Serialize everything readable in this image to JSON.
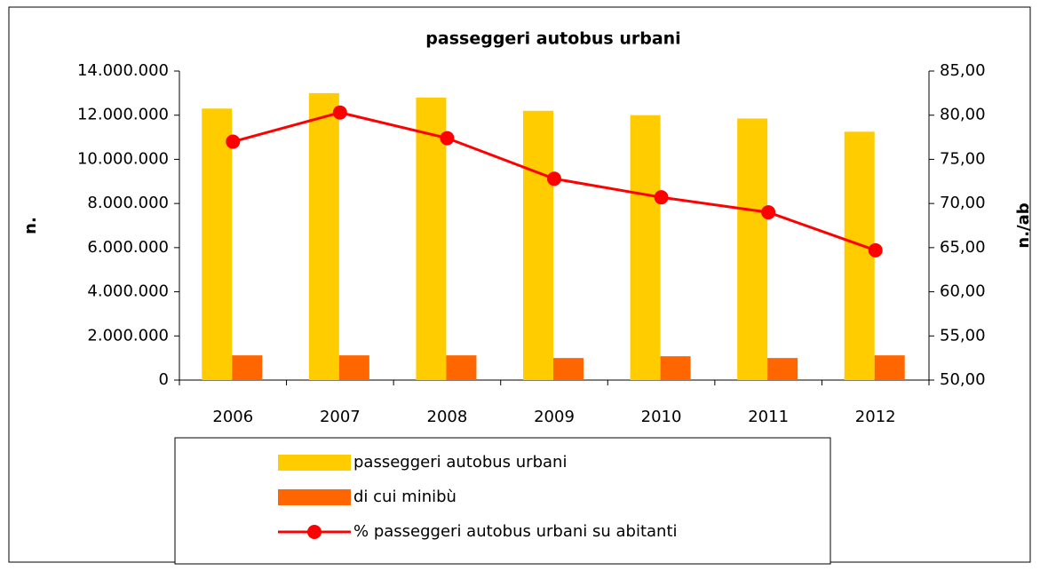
{
  "chart_data": {
    "type": "bar",
    "title": "passeggeri autobus urbani",
    "ylabel": "n.",
    "y2label": "n./ab",
    "categories": [
      "2006",
      "2007",
      "2008",
      "2009",
      "2010",
      "2011",
      "2012"
    ],
    "series": [
      {
        "name": "passeggeri autobus urbani",
        "type": "bar",
        "color": "#ffcc00",
        "values": [
          12300000,
          13000000,
          12800000,
          12200000,
          12000000,
          11850000,
          11250000
        ]
      },
      {
        "name": "di cui minibù",
        "type": "bar",
        "color": "#ff6600",
        "values": [
          1120000,
          1120000,
          1120000,
          1000000,
          1080000,
          1000000,
          1120000
        ]
      },
      {
        "name": "% passeggeri autobus urbani su abitanti",
        "type": "line",
        "axis": "y2",
        "color": "#ff0000",
        "values": [
          77.0,
          80.3,
          77.4,
          72.8,
          70.7,
          69.0,
          64.7
        ]
      }
    ],
    "ylim": [
      0,
      14000000
    ],
    "yticks": [
      0,
      {
        "value": 2000000,
        "label": "2.000.000"
      },
      {
        "value": 4000000,
        "label": "4.000.000"
      },
      {
        "value": 6000000,
        "label": "6.000.000"
      },
      {
        "value": 8000000,
        "label": "8.000.000"
      },
      {
        "value": 10000000,
        "label": "10.000.000"
      },
      {
        "value": 12000000,
        "label": "12.000.000"
      },
      {
        "value": 14000000,
        "label": "14.000.000"
      }
    ],
    "y2lim": [
      50,
      85
    ],
    "y2ticks": [
      {
        "value": 50,
        "label": "50,00"
      },
      {
        "value": 55,
        "label": "55,00"
      },
      {
        "value": 60,
        "label": "60,00"
      },
      {
        "value": 65,
        "label": "65,00"
      },
      {
        "value": 70,
        "label": "70,00"
      },
      {
        "value": 75,
        "label": "75,00"
      },
      {
        "value": 80,
        "label": "80,00"
      },
      {
        "value": 85,
        "label": "85,00"
      }
    ],
    "grid": false,
    "legend": "bottom"
  }
}
